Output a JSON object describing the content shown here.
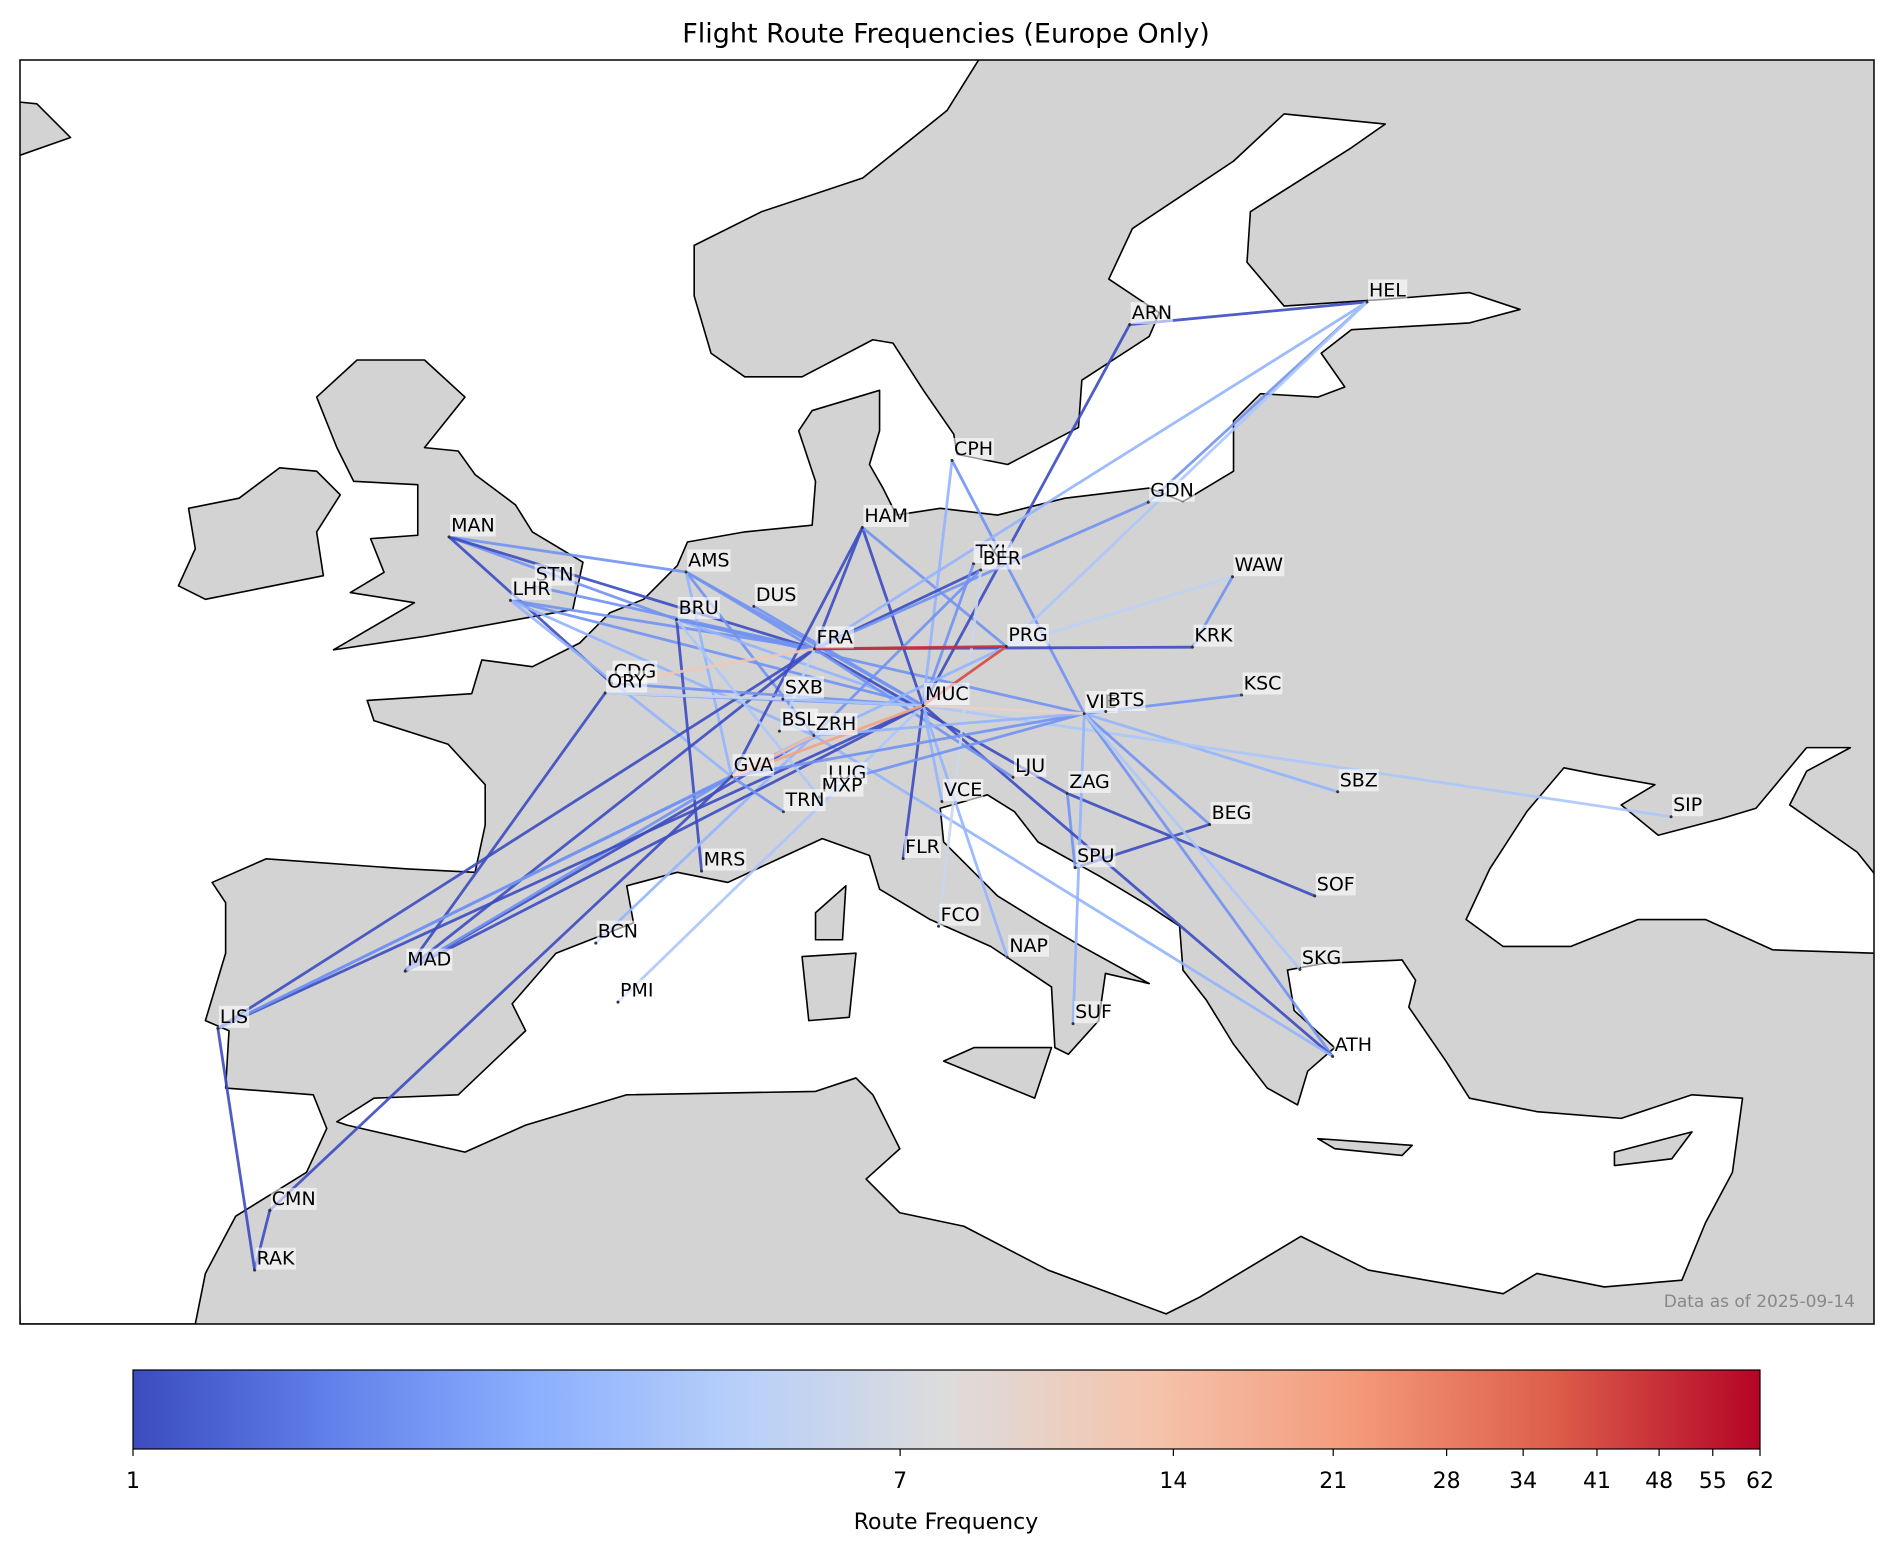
{
  "chart_data": {
    "type": "map",
    "title": "Flight Route Frequencies (Europe Only)",
    "annotation": "Data as of 2025-09-14",
    "xlim": [
      -15,
      40
    ],
    "ylim": [
      30,
      67.5
    ],
    "land_color": "#d3d3d3",
    "airports": [
      {
        "code": "MAN",
        "lon": -2.27,
        "lat": 53.35
      },
      {
        "code": "STN",
        "lon": 0.24,
        "lat": 51.89
      },
      {
        "code": "LHR",
        "lon": -0.45,
        "lat": 51.47
      },
      {
        "code": "AMS",
        "lon": 4.76,
        "lat": 52.31
      },
      {
        "code": "BRU",
        "lon": 4.48,
        "lat": 50.9
      },
      {
        "code": "DUS",
        "lon": 6.77,
        "lat": 51.29
      },
      {
        "code": "FRA",
        "lon": 8.57,
        "lat": 50.03
      },
      {
        "code": "HAM",
        "lon": 9.99,
        "lat": 53.63
      },
      {
        "code": "CPH",
        "lon": 12.65,
        "lat": 55.62
      },
      {
        "code": "TXL",
        "lon": 13.29,
        "lat": 52.56
      },
      {
        "code": "BER",
        "lon": 13.5,
        "lat": 52.37
      },
      {
        "code": "PRG",
        "lon": 14.26,
        "lat": 50.1
      },
      {
        "code": "ARN",
        "lon": 17.92,
        "lat": 59.65
      },
      {
        "code": "HEL",
        "lon": 24.96,
        "lat": 60.32
      },
      {
        "code": "GDN",
        "lon": 18.47,
        "lat": 54.38
      },
      {
        "code": "WAW",
        "lon": 20.97,
        "lat": 52.17
      },
      {
        "code": "KRK",
        "lon": 19.78,
        "lat": 50.08
      },
      {
        "code": "KSC",
        "lon": 21.24,
        "lat": 48.66
      },
      {
        "code": "VIE",
        "lon": 16.57,
        "lat": 48.11
      },
      {
        "code": "BTS",
        "lon": 17.21,
        "lat": 48.17
      },
      {
        "code": "MUC",
        "lon": 11.79,
        "lat": 48.35
      },
      {
        "code": "CDG",
        "lon": 2.55,
        "lat": 49.01
      },
      {
        "code": "ORY",
        "lon": 2.36,
        "lat": 48.72
      },
      {
        "code": "SXB",
        "lon": 7.63,
        "lat": 48.54
      },
      {
        "code": "BSL",
        "lon": 7.53,
        "lat": 47.59
      },
      {
        "code": "ZRH",
        "lon": 8.55,
        "lat": 47.46
      },
      {
        "code": "GVA",
        "lon": 6.11,
        "lat": 46.24
      },
      {
        "code": "LUG",
        "lon": 8.91,
        "lat": 46.0
      },
      {
        "code": "MXP",
        "lon": 8.72,
        "lat": 45.63
      },
      {
        "code": "TRN",
        "lon": 7.65,
        "lat": 45.2
      },
      {
        "code": "LJU",
        "lon": 14.46,
        "lat": 46.22
      },
      {
        "code": "ZAG",
        "lon": 16.07,
        "lat": 45.74
      },
      {
        "code": "VCE",
        "lon": 12.35,
        "lat": 45.5
      },
      {
        "code": "SBZ",
        "lon": 24.09,
        "lat": 45.79
      },
      {
        "code": "SIP",
        "lon": 33.98,
        "lat": 45.05
      },
      {
        "code": "BEG",
        "lon": 20.29,
        "lat": 44.82
      },
      {
        "code": "FLR",
        "lon": 11.2,
        "lat": 43.81
      },
      {
        "code": "MRS",
        "lon": 5.22,
        "lat": 43.44
      },
      {
        "code": "SPU",
        "lon": 16.3,
        "lat": 43.54
      },
      {
        "code": "SOF",
        "lon": 23.41,
        "lat": 42.7
      },
      {
        "code": "BCN",
        "lon": 2.08,
        "lat": 41.3
      },
      {
        "code": "FCO",
        "lon": 12.25,
        "lat": 41.8
      },
      {
        "code": "NAP",
        "lon": 14.29,
        "lat": 40.88
      },
      {
        "code": "MAD",
        "lon": -3.57,
        "lat": 40.47
      },
      {
        "code": "PMI",
        "lon": 2.74,
        "lat": 39.55
      },
      {
        "code": "LIS",
        "lon": -9.13,
        "lat": 38.77
      },
      {
        "code": "SUF",
        "lon": 16.24,
        "lat": 38.91
      },
      {
        "code": "SKG",
        "lon": 22.97,
        "lat": 40.52
      },
      {
        "code": "ATH",
        "lon": 23.94,
        "lat": 37.94
      },
      {
        "code": "CMN",
        "lon": -7.59,
        "lat": 33.37
      },
      {
        "code": "RAK",
        "lon": -8.04,
        "lat": 31.6
      }
    ],
    "routes": [
      {
        "source": "MAN",
        "target": "BRU",
        "value": 2
      },
      {
        "source": "MAN",
        "target": "AMS",
        "value": 2
      },
      {
        "source": "MAN",
        "target": "FRA",
        "value": 1
      },
      {
        "source": "MAN",
        "target": "CDG",
        "value": 1
      },
      {
        "source": "STN",
        "target": "FRA",
        "value": 2
      },
      {
        "source": "LHR",
        "target": "FRA",
        "value": 2
      },
      {
        "source": "LHR",
        "target": "MUC",
        "value": 2
      },
      {
        "source": "LHR",
        "target": "ZRH",
        "value": 3
      },
      {
        "source": "LHR",
        "target": "GVA",
        "value": 3
      },
      {
        "source": "AMS",
        "target": "FRA",
        "value": 2
      },
      {
        "source": "AMS",
        "target": "MUC",
        "value": 2
      },
      {
        "source": "AMS",
        "target": "ZRH",
        "value": 2
      },
      {
        "source": "AMS",
        "target": "GVA",
        "value": 3
      },
      {
        "source": "BRU",
        "target": "FRA",
        "value": 2
      },
      {
        "source": "BRU",
        "target": "MUC",
        "value": 3
      },
      {
        "source": "BRU",
        "target": "VIE",
        "value": 2
      },
      {
        "source": "DUS",
        "target": "MUC",
        "value": 2
      },
      {
        "source": "HAM",
        "target": "FRA",
        "value": 1
      },
      {
        "source": "HAM",
        "target": "MUC",
        "value": 1
      },
      {
        "source": "HAM",
        "target": "PRG",
        "value": 2
      },
      {
        "source": "HAM",
        "target": "GVA",
        "value": 1
      },
      {
        "source": "CPH",
        "target": "MUC",
        "value": 3
      },
      {
        "source": "CPH",
        "target": "VIE",
        "value": 2
      },
      {
        "source": "BER",
        "target": "FRA",
        "value": 1
      },
      {
        "source": "BER",
        "target": "ZRH",
        "value": 2
      },
      {
        "source": "TXL",
        "target": "MUC",
        "value": 2
      },
      {
        "source": "ARN",
        "target": "HEL",
        "value": 1
      },
      {
        "source": "ARN",
        "target": "MUC",
        "value": 1
      },
      {
        "source": "HEL",
        "target": "GDN",
        "value": 2
      },
      {
        "source": "HEL",
        "target": "FRA",
        "value": 3
      },
      {
        "source": "HEL",
        "target": "PRG",
        "value": 4
      },
      {
        "source": "GDN",
        "target": "FRA",
        "value": 2
      },
      {
        "source": "WAW",
        "target": "PRG",
        "value": 5
      },
      {
        "source": "WAW",
        "target": "KRK",
        "value": 2
      },
      {
        "source": "KRK",
        "target": "FRA",
        "value": 1
      },
      {
        "source": "KSC",
        "target": "VIE",
        "value": 2
      },
      {
        "source": "VIE",
        "target": "SBZ",
        "value": 3
      },
      {
        "source": "MUC",
        "target": "SIP",
        "value": 4
      },
      {
        "source": "VIE",
        "target": "BEG",
        "value": 2
      },
      {
        "source": "ZAG",
        "target": "FRA",
        "value": 1
      },
      {
        "source": "ZAG",
        "target": "SOF",
        "value": 1
      },
      {
        "source": "ZAG",
        "target": "SPU",
        "value": 2
      },
      {
        "source": "SPU",
        "target": "BEG",
        "value": 1
      },
      {
        "source": "ATH",
        "target": "VIE",
        "value": 2
      },
      {
        "source": "ATH",
        "target": "MUC",
        "value": 1
      },
      {
        "source": "ATH",
        "target": "ZRH",
        "value": 3
      },
      {
        "source": "SKG",
        "target": "VIE",
        "value": 4
      },
      {
        "source": "LJU",
        "target": "FRA",
        "value": 2
      },
      {
        "source": "VCE",
        "target": "MUC",
        "value": 3
      },
      {
        "source": "FLR",
        "target": "MUC",
        "value": 1
      },
      {
        "source": "FCO",
        "target": "BER",
        "value": 6
      },
      {
        "source": "NAP",
        "target": "MUC",
        "value": 3
      },
      {
        "source": "SUF",
        "target": "VIE",
        "value": 3
      },
      {
        "source": "MRS",
        "target": "BRU",
        "value": 1
      },
      {
        "source": "BCN",
        "target": "ZRH",
        "value": 3
      },
      {
        "source": "PMI",
        "target": "MUC",
        "value": 4
      },
      {
        "source": "MAD",
        "target": "FRA",
        "value": 1
      },
      {
        "source": "MAD",
        "target": "MUC",
        "value": 1
      },
      {
        "source": "MAD",
        "target": "ZRH",
        "value": 1
      },
      {
        "source": "MAD",
        "target": "GVA",
        "value": 2
      },
      {
        "source": "MAD",
        "target": "ORY",
        "value": 1
      },
      {
        "source": "LIS",
        "target": "GVA",
        "value": 2
      },
      {
        "source": "LIS",
        "target": "MUC",
        "value": 1
      },
      {
        "source": "LIS",
        "target": "ZRH",
        "value": 2
      },
      {
        "source": "LIS",
        "target": "FRA",
        "value": 1
      },
      {
        "source": "LIS",
        "target": "RAK",
        "value": 1
      },
      {
        "source": "RAK",
        "target": "CMN",
        "value": 1
      },
      {
        "source": "CMN",
        "target": "GVA",
        "value": 1
      },
      {
        "source": "ORY",
        "target": "MUC",
        "value": 2
      },
      {
        "source": "CDG",
        "target": "MUC",
        "value": 2
      },
      {
        "source": "GVA",
        "target": "TRN",
        "value": 2
      },
      {
        "source": "LUG",
        "target": "VIE",
        "value": 2
      },
      {
        "source": "MXP",
        "target": "BRU",
        "value": 4
      },
      {
        "source": "GVA",
        "target": "VIE",
        "value": 2
      },
      {
        "source": "GVA",
        "target": "PRG",
        "value": 3
      },
      {
        "source": "BSL",
        "target": "FRA",
        "value": 5
      },
      {
        "source": "ZRH",
        "target": "VIE",
        "value": 3
      },
      {
        "source": "SXB",
        "target": "MUC",
        "value": 4
      },
      {
        "source": "ORY",
        "target": "SXB",
        "value": 6
      },
      {
        "source": "MUC",
        "target": "VIE",
        "value": 10
      },
      {
        "source": "CDG",
        "target": "FRA",
        "value": 12
      },
      {
        "source": "GVA",
        "target": "ZRH",
        "value": 14
      },
      {
        "source": "GVA",
        "target": "MUC",
        "value": 20
      },
      {
        "source": "MUC",
        "target": "PRG",
        "value": 41
      },
      {
        "source": "FRA",
        "target": "PRG",
        "value": 48
      }
    ],
    "colorbar": {
      "label": "Route Frequency",
      "scale": "log",
      "lim": [
        1,
        62
      ],
      "ticks": [
        1,
        7,
        14,
        21,
        28,
        34,
        41,
        48,
        55,
        62
      ],
      "colors": [
        "#3b4cc0",
        "#6282ea",
        "#8db0fe",
        "#b8d0f9",
        "#dddcdc",
        "#f5c4ac",
        "#f49a7b",
        "#dc5d4a",
        "#b40426"
      ]
    }
  }
}
